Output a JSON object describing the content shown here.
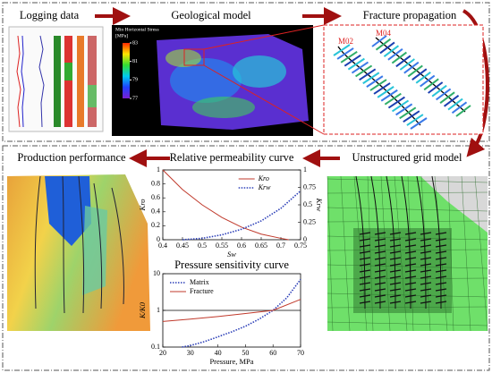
{
  "top": {
    "steps": [
      "Logging data",
      "Geological model",
      "Fracture propagation"
    ]
  },
  "geo_colorbar": {
    "label_lines": [
      "Min Horizontal Stress",
      "[MPa]"
    ],
    "lim": [
      83,
      77
    ],
    "ticks": [
      83,
      81,
      79,
      77
    ]
  },
  "fracture_wells": [
    "M02",
    "M04"
  ],
  "bottom": {
    "steps": [
      "Production performance",
      "Unstructured grid model"
    ]
  },
  "charts": [
    {
      "type": "line",
      "title": "Relative permeability curve",
      "xlabel": "Sw",
      "ylabel": "Kro",
      "y2label": "Krw",
      "xlim": [
        0.4,
        0.75
      ],
      "xticks": [
        0.4,
        0.45,
        0.5,
        0.55,
        0.6,
        0.65,
        0.7,
        0.75
      ],
      "ylim": [
        0,
        1
      ],
      "yticks": [
        0,
        0.2,
        0.4,
        0.6,
        0.8,
        1
      ],
      "y2lim": [
        0,
        1
      ],
      "y2ticks": [
        0,
        0.25,
        0.5,
        0.75,
        1
      ],
      "legend": "upper right",
      "series": [
        {
          "name": "Kro",
          "color": "#c0392b",
          "dash": "solid",
          "x": [
            0.4,
            0.45,
            0.5,
            0.55,
            0.6,
            0.65,
            0.7,
            0.72
          ],
          "values": [
            1,
            0.72,
            0.5,
            0.32,
            0.18,
            0.08,
            0.02,
            0
          ]
        },
        {
          "name": "Krw",
          "color": "#2c3fb8",
          "dash": "dotted",
          "axis": "y2",
          "x": [
            0.45,
            0.5,
            0.55,
            0.6,
            0.65,
            0.7,
            0.75
          ],
          "values": [
            0,
            0.02,
            0.07,
            0.15,
            0.27,
            0.45,
            0.7
          ]
        }
      ]
    },
    {
      "type": "line",
      "title": "Pressure sensitivity curve",
      "xlabel": "Pressure, MPa",
      "ylabel": "K/K0",
      "xlim": [
        20,
        70
      ],
      "xticks": [
        20,
        30,
        40,
        50,
        60,
        70
      ],
      "ylim": [
        0.1,
        10
      ],
      "yticks": [
        0.1,
        1,
        10
      ],
      "yscale": "log",
      "reference_line": 1,
      "legend": "upper left",
      "series": [
        {
          "name": "Matrix",
          "color": "#2c3fb8",
          "dash": "dotted",
          "x": [
            27,
            30,
            35,
            40,
            45,
            50,
            55,
            60,
            65,
            70
          ],
          "values": [
            0.1,
            0.11,
            0.14,
            0.19,
            0.26,
            0.37,
            0.58,
            1,
            2.2,
            7
          ]
        },
        {
          "name": "Fracture",
          "color": "#c0392b",
          "dash": "solid",
          "x": [
            20,
            30,
            40,
            50,
            60,
            70
          ],
          "values": [
            0.5,
            0.58,
            0.68,
            0.82,
            1,
            2
          ]
        }
      ]
    }
  ]
}
